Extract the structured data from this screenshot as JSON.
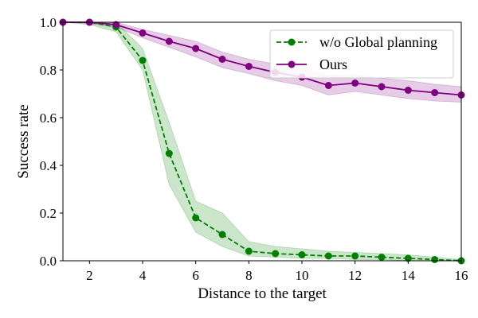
{
  "chart_data": {
    "type": "line",
    "title": "",
    "xlabel": "Distance to the target",
    "ylabel": "Success rate",
    "xlim": [
      1,
      16
    ],
    "ylim": [
      0.0,
      1.0
    ],
    "xticks": [
      2,
      4,
      6,
      8,
      10,
      12,
      14,
      16
    ],
    "yticks": [
      0.0,
      0.2,
      0.4,
      0.6,
      0.8,
      1.0
    ],
    "x_tick_labels": [
      "2",
      "4",
      "6",
      "8",
      "10",
      "12",
      "14",
      "16"
    ],
    "y_tick_labels": [
      "0.0",
      "0.2",
      "0.4",
      "0.6",
      "0.8",
      "1.0"
    ],
    "grid": false,
    "legend_position": "top-right",
    "series": [
      {
        "name": "w/o Global planning",
        "color": "#008000",
        "line_style": "dashed",
        "marker": "circle",
        "x": [
          1,
          2,
          3,
          4,
          5,
          6,
          7,
          8,
          9,
          10,
          11,
          12,
          13,
          14,
          15,
          16
        ],
        "values": [
          1.0,
          1.0,
          0.98,
          0.84,
          0.45,
          0.18,
          0.11,
          0.04,
          0.03,
          0.025,
          0.02,
          0.02,
          0.015,
          0.01,
          0.005,
          0.0
        ],
        "upper": [
          1.0,
          1.0,
          1.0,
          0.89,
          0.58,
          0.25,
          0.2,
          0.08,
          0.06,
          0.05,
          0.04,
          0.035,
          0.03,
          0.025,
          0.015,
          0.005
        ],
        "lower": [
          1.0,
          0.99,
          0.96,
          0.8,
          0.32,
          0.12,
          0.06,
          0.02,
          0.015,
          0.01,
          0.01,
          0.005,
          0.005,
          0.0,
          0.0,
          0.0
        ]
      },
      {
        "name": "Ours",
        "color": "#800080",
        "line_style": "solid",
        "marker": "circle",
        "x": [
          1,
          2,
          3,
          4,
          5,
          6,
          7,
          8,
          9,
          10,
          11,
          12,
          13,
          14,
          15,
          16
        ],
        "values": [
          1.0,
          1.0,
          0.99,
          0.955,
          0.92,
          0.89,
          0.845,
          0.815,
          0.79,
          0.77,
          0.735,
          0.745,
          0.73,
          0.715,
          0.705,
          0.695
        ],
        "upper": [
          1.0,
          1.0,
          1.0,
          0.97,
          0.945,
          0.92,
          0.875,
          0.845,
          0.825,
          0.805,
          0.775,
          0.78,
          0.765,
          0.755,
          0.74,
          0.73
        ],
        "lower": [
          1.0,
          0.995,
          0.98,
          0.935,
          0.895,
          0.855,
          0.81,
          0.785,
          0.755,
          0.735,
          0.695,
          0.71,
          0.695,
          0.68,
          0.67,
          0.665
        ]
      }
    ]
  }
}
